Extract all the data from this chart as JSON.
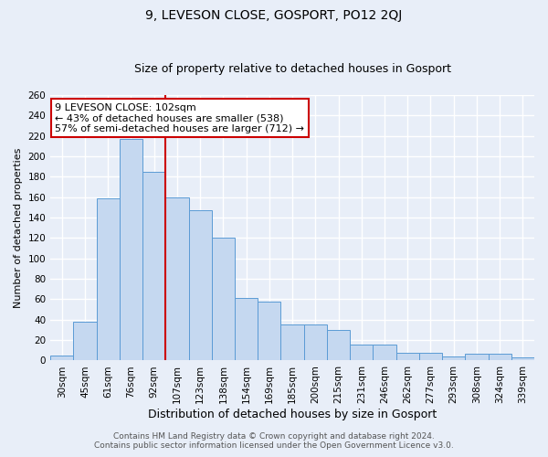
{
  "title": "9, LEVESON CLOSE, GOSPORT, PO12 2QJ",
  "subtitle": "Size of property relative to detached houses in Gosport",
  "xlabel": "Distribution of detached houses by size in Gosport",
  "ylabel": "Number of detached properties",
  "categories": [
    "30sqm",
    "45sqm",
    "61sqm",
    "76sqm",
    "92sqm",
    "107sqm",
    "123sqm",
    "138sqm",
    "154sqm",
    "169sqm",
    "185sqm",
    "200sqm",
    "215sqm",
    "231sqm",
    "246sqm",
    "262sqm",
    "277sqm",
    "293sqm",
    "308sqm",
    "324sqm",
    "339sqm"
  ],
  "values": [
    5,
    38,
    159,
    217,
    185,
    160,
    147,
    120,
    61,
    58,
    35,
    35,
    30,
    16,
    16,
    8,
    8,
    4,
    7,
    7,
    3
  ],
  "bar_color": "#c5d8f0",
  "bar_edge_color": "#5b9bd5",
  "vline_pos": 4.5,
  "vline_color": "#cc0000",
  "ylim": [
    0,
    260
  ],
  "yticks": [
    0,
    20,
    40,
    60,
    80,
    100,
    120,
    140,
    160,
    180,
    200,
    220,
    240,
    260
  ],
  "annotation_title": "9 LEVESON CLOSE: 102sqm",
  "annotation_line1": "← 43% of detached houses are smaller (538)",
  "annotation_line2": "57% of semi-detached houses are larger (712) →",
  "annotation_box_color": "#ffffff",
  "annotation_box_edge": "#cc0000",
  "footer1": "Contains HM Land Registry data © Crown copyright and database right 2024.",
  "footer2": "Contains public sector information licensed under the Open Government Licence v3.0.",
  "background_color": "#e8eef8",
  "plot_bg_color": "#e8eef8",
  "grid_color": "#ffffff",
  "title_fontsize": 10,
  "subtitle_fontsize": 9,
  "xlabel_fontsize": 9,
  "ylabel_fontsize": 8,
  "tick_fontsize": 7.5,
  "annotation_fontsize": 8,
  "footer_fontsize": 6.5
}
